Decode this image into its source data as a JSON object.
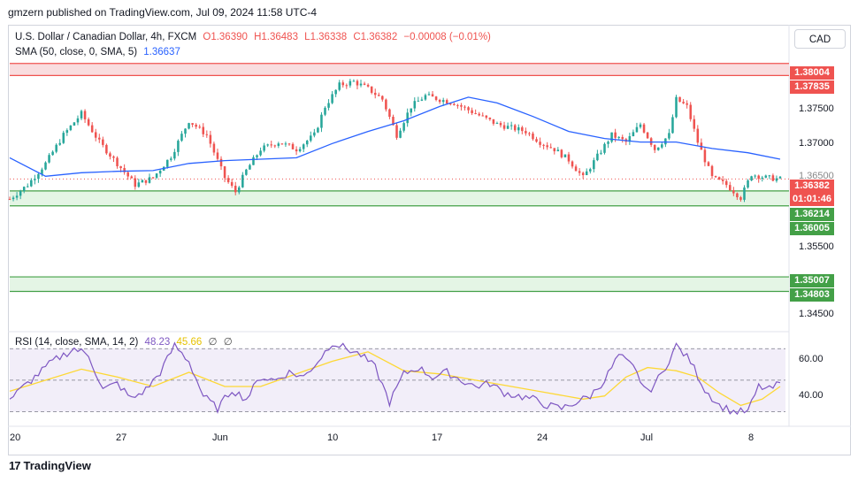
{
  "caption": "gmzern published on TradingView.com, Jul 09, 2024 11:58 UTC-4",
  "currency_button": "CAD",
  "legend": {
    "symbol": "U.S. Dollar / Canadian Dollar, 4h, FXCM",
    "open": "O1.36390",
    "high": "H1.36483",
    "low": "L1.36338",
    "close": "C1.36382",
    "change": "−0.00008 (−0.01%)",
    "sma_label": "SMA (50, close, 0, SMA, 5)",
    "sma_value": "1.36637",
    "rsi_label": "RSI (14, close, SMA, 14, 2)",
    "rsi_value": "48.23",
    "rsi_ma_value": "45.66",
    "rsi_extra1": "∅",
    "rsi_extra2": "∅"
  },
  "price_tags": {
    "resistance_top": "1.38004",
    "resistance_bottom": "1.37835",
    "current_price": "1.36382",
    "countdown": "01:01:46",
    "support_top": "1.36214",
    "support_bottom": "1.36005",
    "support2_top": "1.35007",
    "support2_bottom": "1.34803"
  },
  "footer": "TradingView",
  "colors": {
    "up": "#26a69a",
    "down": "#ef5350",
    "sma": "#2962ff",
    "rsi": "#7e57c2",
    "rsi_ma": "#fdd835",
    "resistance_zone": "#f8d7d9",
    "support_zone": "#dff3e0"
  },
  "chart_data": [
    {
      "type": "candlestick",
      "timeframe": "4h",
      "y_axis_ticks": [
        "1.37500",
        "1.37000",
        "1.36500",
        "1.35500",
        "1.34500"
      ],
      "x_axis_ticks": [
        "20",
        "27",
        "Jun",
        "10",
        "17",
        "24",
        "Jul",
        "8"
      ],
      "ylim": [
        1.343,
        1.3815
      ],
      "zones": [
        {
          "kind": "resistance",
          "top": 1.38004,
          "bottom": 1.37835
        },
        {
          "kind": "support",
          "top": 1.36214,
          "bottom": 1.36005
        },
        {
          "kind": "support",
          "top": 1.35007,
          "bottom": 1.34803
        }
      ],
      "current_price": 1.36382,
      "close_path": [
        [
          0,
          1.361
        ],
        [
          5,
          1.363
        ],
        [
          10,
          1.366
        ],
        [
          15,
          1.37
        ],
        [
          20,
          1.373
        ],
        [
          25,
          1.369
        ],
        [
          30,
          1.366
        ],
        [
          35,
          1.363
        ],
        [
          40,
          1.364
        ],
        [
          45,
          1.367
        ],
        [
          50,
          1.372
        ],
        [
          55,
          1.37
        ],
        [
          60,
          1.364
        ],
        [
          63,
          1.362
        ],
        [
          66,
          1.365
        ],
        [
          70,
          1.368
        ],
        [
          75,
          1.369
        ],
        [
          80,
          1.368
        ],
        [
          85,
          1.37
        ],
        [
          88,
          1.374
        ],
        [
          92,
          1.377
        ],
        [
          96,
          1.3775
        ],
        [
          100,
          1.3765
        ],
        [
          104,
          1.375
        ],
        [
          108,
          1.37
        ],
        [
          112,
          1.374
        ],
        [
          116,
          1.3755
        ],
        [
          120,
          1.375
        ],
        [
          124,
          1.3745
        ],
        [
          128,
          1.3735
        ],
        [
          132,
          1.3725
        ],
        [
          136,
          1.3715
        ],
        [
          140,
          1.371
        ],
        [
          144,
          1.3705
        ],
        [
          148,
          1.369
        ],
        [
          152,
          1.368
        ],
        [
          156,
          1.3665
        ],
        [
          160,
          1.364
        ],
        [
          164,
          1.367
        ],
        [
          168,
          1.37
        ],
        [
          172,
          1.369
        ],
        [
          176,
          1.3715
        ],
        [
          180,
          1.368
        ],
        [
          184,
          1.37
        ],
        [
          186,
          1.375
        ],
        [
          189,
          1.374
        ],
        [
          192,
          1.369
        ],
        [
          196,
          1.364
        ],
        [
          200,
          1.363
        ],
        [
          204,
          1.3612
        ],
        [
          207,
          1.3645
        ],
        [
          211,
          1.364
        ],
        [
          215,
          1.3638
        ]
      ],
      "series": [
        {
          "name": "SMA (50, close, 0, SMA, 5)",
          "path": [
            [
              0,
              1.3668
            ],
            [
              10,
              1.3642
            ],
            [
              20,
              1.3647
            ],
            [
              30,
              1.3649
            ],
            [
              40,
              1.365
            ],
            [
              50,
              1.366
            ],
            [
              60,
              1.3664
            ],
            [
              70,
              1.3666
            ],
            [
              80,
              1.3668
            ],
            [
              90,
              1.3688
            ],
            [
              100,
              1.3705
            ],
            [
              110,
              1.372
            ],
            [
              120,
              1.374
            ],
            [
              128,
              1.3753
            ],
            [
              136,
              1.3745
            ],
            [
              146,
              1.3726
            ],
            [
              156,
              1.3705
            ],
            [
              166,
              1.3695
            ],
            [
              176,
              1.369
            ],
            [
              186,
              1.369
            ],
            [
              196,
              1.3681
            ],
            [
              206,
              1.3675
            ],
            [
              215,
              1.3666
            ]
          ]
        }
      ]
    },
    {
      "type": "line",
      "title": "RSI (14, close, SMA, 14, 2)",
      "y_axis_ticks": [
        "60.00",
        "40.00"
      ],
      "ylim": [
        23,
        78
      ],
      "band": [
        30,
        70
      ],
      "series": [
        {
          "name": "RSI",
          "path": [
            [
              0,
              38
            ],
            [
              6,
              50
            ],
            [
              12,
              62
            ],
            [
              18,
              70
            ],
            [
              22,
              66
            ],
            [
              26,
              44
            ],
            [
              30,
              48
            ],
            [
              34,
              38
            ],
            [
              38,
              44
            ],
            [
              42,
              55
            ],
            [
              46,
              72
            ],
            [
              50,
              62
            ],
            [
              54,
              40
            ],
            [
              58,
              32
            ],
            [
              62,
              44
            ],
            [
              66,
              38
            ],
            [
              70,
              52
            ],
            [
              74,
              50
            ],
            [
              78,
              55
            ],
            [
              82,
              52
            ],
            [
              86,
              62
            ],
            [
              90,
              74
            ],
            [
              94,
              70
            ],
            [
              98,
              66
            ],
            [
              102,
              58
            ],
            [
              106,
              36
            ],
            [
              110,
              54
            ],
            [
              114,
              58
            ],
            [
              118,
              52
            ],
            [
              122,
              55
            ],
            [
              126,
              50
            ],
            [
              130,
              46
            ],
            [
              134,
              48
            ],
            [
              138,
              42
            ],
            [
              142,
              40
            ],
            [
              146,
              38
            ],
            [
              150,
              34
            ],
            [
              154,
              32
            ],
            [
              158,
              36
            ],
            [
              162,
              40
            ],
            [
              166,
              50
            ],
            [
              170,
              66
            ],
            [
              174,
              58
            ],
            [
              178,
              42
            ],
            [
              182,
              54
            ],
            [
              186,
              72
            ],
            [
              190,
              62
            ],
            [
              194,
              44
            ],
            [
              198,
              34
            ],
            [
              202,
              30
            ],
            [
              206,
              30
            ],
            [
              209,
              46
            ],
            [
              212,
              44
            ],
            [
              215,
              48
            ]
          ]
        },
        {
          "name": "RSI-based MA",
          "path": [
            [
              0,
              43
            ],
            [
              10,
              50
            ],
            [
              20,
              57
            ],
            [
              30,
              52
            ],
            [
              40,
              46
            ],
            [
              50,
              55
            ],
            [
              60,
              46
            ],
            [
              70,
              46
            ],
            [
              80,
              54
            ],
            [
              90,
              62
            ],
            [
              100,
              68
            ],
            [
              110,
              56
            ],
            [
              120,
              54
            ],
            [
              130,
              50
            ],
            [
              140,
              46
            ],
            [
              150,
              42
            ],
            [
              160,
              38
            ],
            [
              166,
              40
            ],
            [
              172,
              52
            ],
            [
              178,
              58
            ],
            [
              186,
              56
            ],
            [
              192,
              52
            ],
            [
              198,
              42
            ],
            [
              204,
              34
            ],
            [
              210,
              38
            ],
            [
              215,
              46
            ]
          ]
        }
      ]
    }
  ]
}
